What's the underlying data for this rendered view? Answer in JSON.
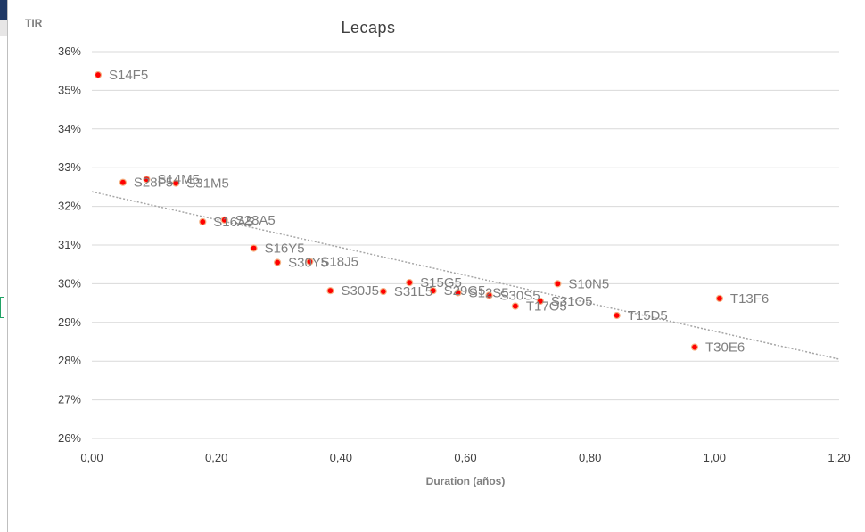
{
  "colors": {
    "point_fill": "#ff0000",
    "point_stroke": "#f4b183",
    "gridline": "#d9d9d9",
    "trendline": "#a6a6a6",
    "text": "#404040",
    "label": "#7f7f7f"
  },
  "chart_data": {
    "type": "scatter",
    "title": "Lecaps",
    "ylabel": "TIR",
    "xlabel": "Duration (años)",
    "xlim": [
      0,
      1.2
    ],
    "ylim": [
      26,
      36
    ],
    "x_ticks": [
      "0,00",
      "0,20",
      "0,40",
      "0,60",
      "0,80",
      "1,00",
      "1,20"
    ],
    "y_ticks": [
      "26%",
      "27%",
      "28%",
      "29%",
      "30%",
      "31%",
      "32%",
      "33%",
      "34%",
      "35%",
      "36%"
    ],
    "grid": "horizontal",
    "trendline": {
      "type": "linear",
      "x": [
        0,
        1.2
      ],
      "y": [
        32.38,
        28.05
      ]
    },
    "series": [
      {
        "points": [
          {
            "label": "S14F5",
            "x": 0.01,
            "y": 35.4
          },
          {
            "label": "S28F5",
            "x": 0.05,
            "y": 32.62
          },
          {
            "label": "S14M5",
            "x": 0.088,
            "y": 32.7
          },
          {
            "label": "S31M5",
            "x": 0.135,
            "y": 32.6
          },
          {
            "label": "S16A5",
            "x": 0.178,
            "y": 31.6
          },
          {
            "label": "S28A5",
            "x": 0.213,
            "y": 31.65
          },
          {
            "label": "S16Y5",
            "x": 0.26,
            "y": 30.92
          },
          {
            "label": "S30Y5",
            "x": 0.298,
            "y": 30.55
          },
          {
            "label": "S18J5",
            "x": 0.35,
            "y": 30.57
          },
          {
            "label": "S30J5",
            "x": 0.383,
            "y": 29.82
          },
          {
            "label": "S31L5",
            "x": 0.468,
            "y": 29.8
          },
          {
            "label": "S15G5",
            "x": 0.51,
            "y": 30.03
          },
          {
            "label": "S29G5",
            "x": 0.548,
            "y": 29.82
          },
          {
            "label": "S12S5",
            "x": 0.588,
            "y": 29.77
          },
          {
            "label": "S30S5",
            "x": 0.638,
            "y": 29.7
          },
          {
            "label": "T17O5",
            "x": 0.68,
            "y": 29.42
          },
          {
            "label": "S31O5",
            "x": 0.72,
            "y": 29.55
          },
          {
            "label": "S10N5",
            "x": 0.748,
            "y": 30.0
          },
          {
            "label": "T15D5",
            "x": 0.843,
            "y": 29.18
          },
          {
            "label": "T30E6",
            "x": 0.968,
            "y": 28.36
          },
          {
            "label": "T13F6",
            "x": 1.008,
            "y": 29.62
          }
        ]
      }
    ]
  }
}
